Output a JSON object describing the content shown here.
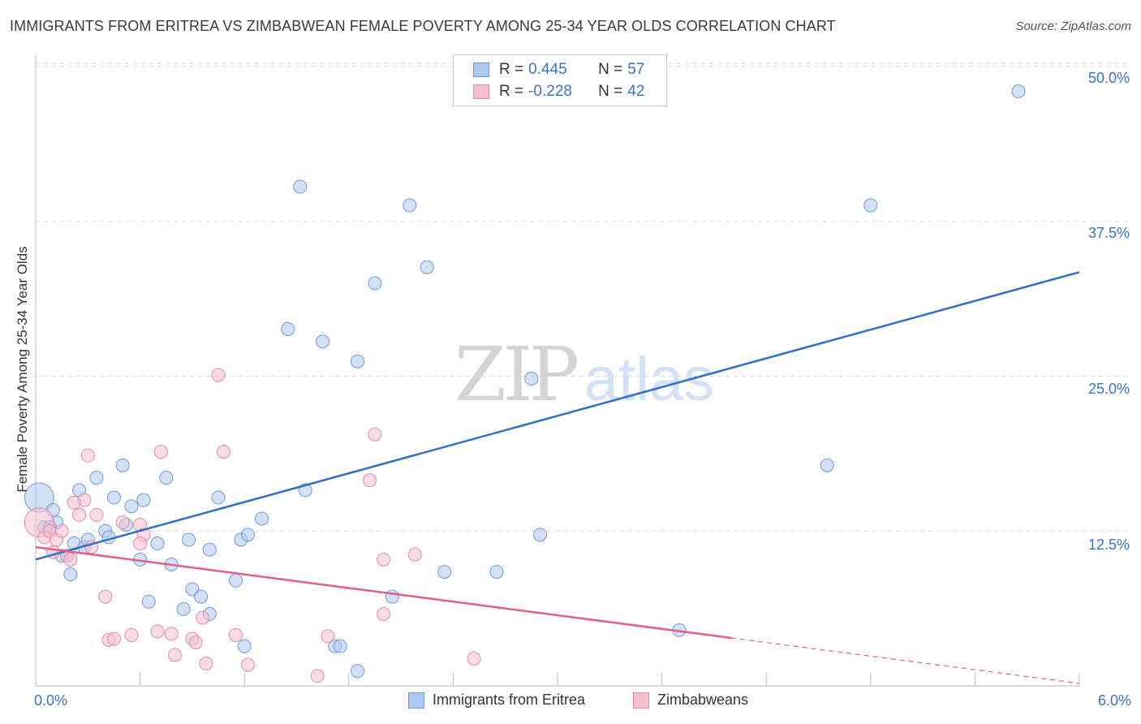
{
  "title": "IMMIGRANTS FROM ERITREA VS ZIMBABWEAN FEMALE POVERTY AMONG 25-34 YEAR OLDS CORRELATION CHART",
  "source": "Source: ZipAtlas.com",
  "watermark": {
    "zip": "ZIP",
    "atlas": "atlas"
  },
  "legend": {
    "rows": [
      {
        "r_label": "R =",
        "r_value": "0.445",
        "n_label": "N =",
        "n_value": "57"
      },
      {
        "r_label": "R =",
        "r_value": "-0.228",
        "n_label": "N =",
        "n_value": "42"
      }
    ]
  },
  "bottom_legend": [
    "Immigrants from Eritrea",
    "Zimbabweans"
  ],
  "x_axis": {
    "min_label": "0.0%",
    "max_label": "6.0%"
  },
  "y_ticks": [
    "50.0%",
    "37.5%",
    "25.0%",
    "12.5%"
  ],
  "colors": {
    "blue_fill": "#adc8ef",
    "blue_stroke": "#6f9ad8",
    "blue_line": "#2f6fc8",
    "pink_fill": "#f6bfd0",
    "pink_stroke": "#e68aa8",
    "pink_line": "#e0608c"
  },
  "chart_data": {
    "type": "scatter",
    "title": "IMMIGRANTS FROM ERITREA VS ZIMBABWEAN FEMALE POVERTY AMONG 25-34 YEAR OLDS CORRELATION CHART",
    "xlabel": "",
    "ylabel": "Female Poverty Among 25-34 Year Olds",
    "xlim": [
      0,
      6
    ],
    "ylim": [
      0,
      50
    ],
    "y_ticks": [
      12.5,
      25,
      37.5,
      50
    ],
    "series": [
      {
        "name": "Immigrants from Eritrea",
        "r": 0.445,
        "n": 57,
        "trend": {
          "x0": 0,
          "y0": 10.2,
          "x1": 6,
          "y1": 33.4,
          "dashed_from": null
        },
        "points": [
          [
            0.02,
            15.2
          ],
          [
            0.05,
            12.8
          ],
          [
            0.1,
            14.2
          ],
          [
            0.15,
            10.5
          ],
          [
            0.2,
            9.0
          ],
          [
            0.22,
            11.5
          ],
          [
            0.25,
            15.8
          ],
          [
            0.28,
            11.2
          ],
          [
            0.3,
            11.8
          ],
          [
            0.35,
            16.8
          ],
          [
            0.4,
            12.5
          ],
          [
            0.45,
            15.2
          ],
          [
            0.5,
            17.8
          ],
          [
            0.52,
            13.0
          ],
          [
            0.55,
            14.5
          ],
          [
            0.6,
            10.2
          ],
          [
            0.62,
            15.0
          ],
          [
            0.65,
            6.8
          ],
          [
            0.7,
            11.5
          ],
          [
            0.75,
            16.8
          ],
          [
            0.78,
            9.8
          ],
          [
            0.85,
            6.2
          ],
          [
            0.9,
            7.8
          ],
          [
            0.88,
            11.8
          ],
          [
            1.0,
            11.0
          ],
          [
            1.05,
            15.2
          ],
          [
            1.15,
            8.5
          ],
          [
            1.18,
            11.8
          ],
          [
            1.22,
            12.2
          ],
          [
            1.3,
            13.5
          ],
          [
            1.45,
            28.8
          ],
          [
            1.52,
            40.3
          ],
          [
            1.65,
            27.8
          ],
          [
            1.55,
            15.8
          ],
          [
            1.72,
            3.2
          ],
          [
            1.85,
            1.2
          ],
          [
            1.75,
            3.2
          ],
          [
            1.85,
            26.2
          ],
          [
            1.95,
            32.5
          ],
          [
            2.05,
            7.2
          ],
          [
            2.15,
            38.8
          ],
          [
            2.25,
            33.8
          ],
          [
            2.35,
            9.2
          ],
          [
            2.65,
            9.2
          ],
          [
            2.85,
            24.8
          ],
          [
            2.9,
            12.2
          ],
          [
            3.7,
            4.5
          ],
          [
            4.55,
            17.8
          ],
          [
            4.8,
            38.8
          ],
          [
            5.65,
            48.0
          ],
          [
            0.18,
            10.5
          ],
          [
            0.12,
            13.2
          ],
          [
            0.08,
            12.8
          ],
          [
            0.42,
            12.0
          ],
          [
            0.95,
            7.2
          ],
          [
            1.0,
            5.8
          ],
          [
            1.2,
            3.2
          ]
        ]
      },
      {
        "name": "Zimbabweans",
        "r": -0.228,
        "n": 42,
        "trend": {
          "x0": 0,
          "y0": 11.2,
          "x1": 6,
          "y1": 0.2,
          "dashed_from": 4.0
        },
        "points": [
          [
            0.02,
            13.2
          ],
          [
            0.05,
            12.0
          ],
          [
            0.08,
            12.5
          ],
          [
            0.1,
            10.8
          ],
          [
            0.12,
            11.8
          ],
          [
            0.15,
            12.5
          ],
          [
            0.18,
            10.5
          ],
          [
            0.2,
            10.2
          ],
          [
            0.25,
            13.8
          ],
          [
            0.28,
            15.0
          ],
          [
            0.3,
            18.6
          ],
          [
            0.32,
            11.2
          ],
          [
            0.35,
            13.8
          ],
          [
            0.4,
            7.2
          ],
          [
            0.42,
            3.7
          ],
          [
            0.45,
            3.8
          ],
          [
            0.5,
            13.2
          ],
          [
            0.55,
            4.1
          ],
          [
            0.6,
            13.0
          ],
          [
            0.62,
            12.2
          ],
          [
            0.7,
            4.4
          ],
          [
            0.72,
            18.9
          ],
          [
            0.78,
            4.2
          ],
          [
            0.8,
            2.5
          ],
          [
            0.9,
            3.8
          ],
          [
            0.92,
            3.5
          ],
          [
            0.96,
            5.5
          ],
          [
            0.98,
            1.8
          ],
          [
            1.05,
            25.1
          ],
          [
            1.08,
            18.9
          ],
          [
            1.15,
            4.1
          ],
          [
            1.22,
            1.7
          ],
          [
            1.62,
            0.8
          ],
          [
            1.68,
            4.0
          ],
          [
            1.95,
            20.3
          ],
          [
            1.92,
            16.6
          ],
          [
            2.0,
            5.8
          ],
          [
            2.0,
            10.2
          ],
          [
            2.18,
            10.6
          ],
          [
            2.52,
            2.2
          ],
          [
            0.22,
            14.8
          ],
          [
            0.6,
            11.5
          ]
        ]
      }
    ]
  }
}
